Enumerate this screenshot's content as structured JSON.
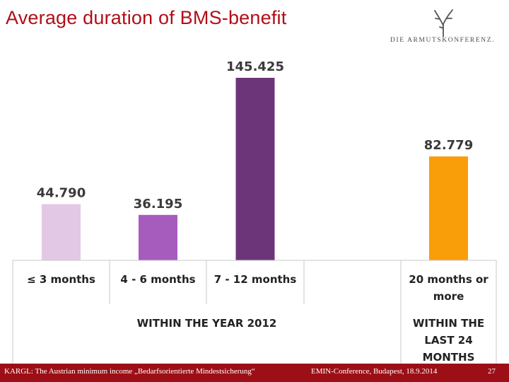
{
  "slide": {
    "title": "Average duration of BMS-benefit",
    "logo_text": "DIE ARMUTSKONFERENZ.",
    "footer_left": "KARGL: The Austrian minimum income „Bedarfsorientierte Mindestsicherung“",
    "footer_center": "EMIN-Conference, Budapest, 18.9.2014",
    "page_number": "27"
  },
  "colors": {
    "title": "#b00f18",
    "footer_bar": "#9c0f16",
    "table_border": "#c8c8c8"
  },
  "chart_data": {
    "type": "bar",
    "title": "Average duration of BMS-benefit",
    "categories": [
      "≤ 3 months",
      "4 - 6 months",
      "7 - 12 months",
      "",
      "20 months or more"
    ],
    "values": [
      44.79,
      36.195,
      145.425,
      null,
      82.779
    ],
    "value_labels": [
      "44.790",
      "36.195",
      "145.425",
      "",
      "82.779"
    ],
    "bar_colors": [
      "#e3c8e6",
      "#a65cbd",
      "#6d3579",
      "",
      "#f99d09"
    ],
    "category_lines": [
      [
        "≤ 3 months"
      ],
      [
        "4 - 6 months"
      ],
      [
        "7 - 12 months"
      ],
      [],
      [
        "20 months or",
        "more"
      ]
    ],
    "groups": [
      {
        "lines": [
          "WITHIN THE YEAR 2012"
        ]
      },
      {
        "lines": [
          "WITHIN THE",
          "LAST 24",
          "MONTHS"
        ]
      }
    ],
    "ylim": [
      0,
      160
    ],
    "xlabel": "",
    "ylabel": "",
    "grid": false,
    "legend": "none"
  }
}
